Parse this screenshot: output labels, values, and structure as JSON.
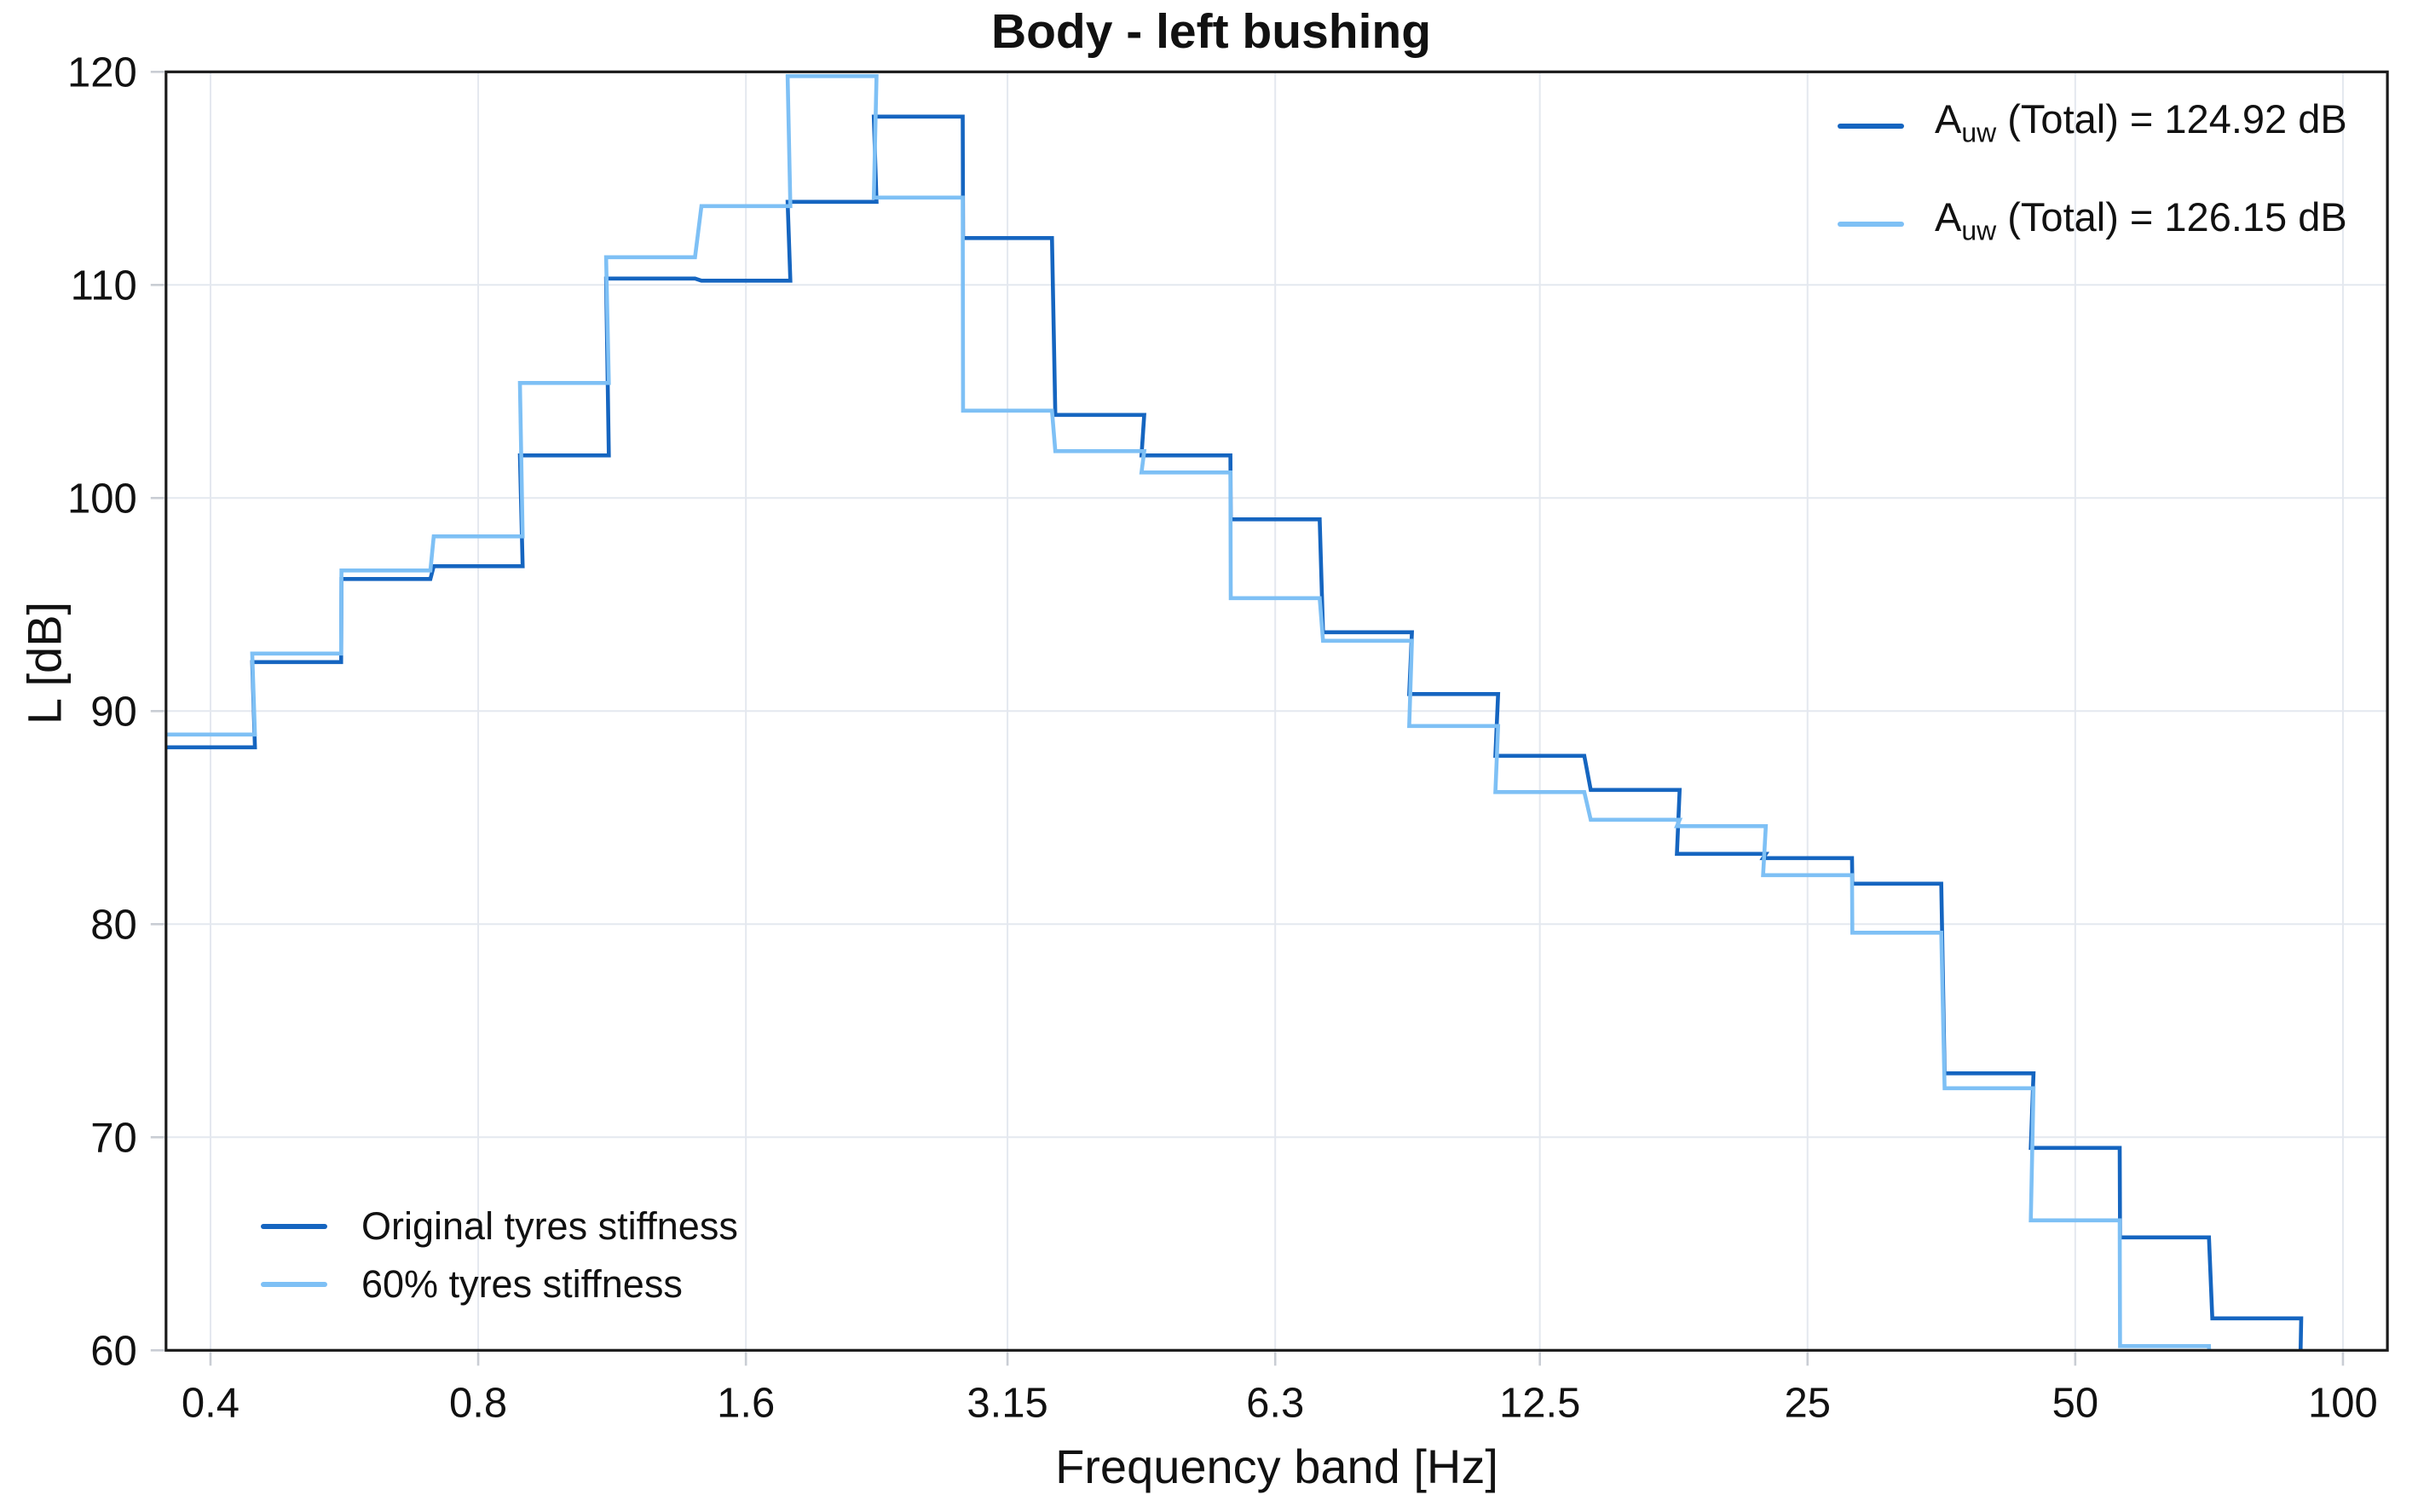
{
  "title": "Body - left bushing",
  "axes": {
    "x_label": "Frequency band [Hz]",
    "y_label": "L [dB]",
    "x_scale": "log",
    "x_min": 0.3565,
    "x_max": 112.2,
    "y_min": 60,
    "y_max": 120,
    "x_ticks": [
      0.4,
      0.8,
      1.6,
      3.15,
      6.3,
      12.5,
      25,
      50,
      100
    ],
    "x_tick_labels": [
      "0.4",
      "0.8",
      "1.6",
      "3.15",
      "6.3",
      "12.5",
      "25",
      "50",
      "100"
    ],
    "y_ticks": [
      60,
      70,
      80,
      90,
      100,
      110,
      120
    ],
    "grid": true
  },
  "colors": {
    "original": "#1565C0",
    "sixty": "#7EC0F5",
    "grid": "#E4E8EF",
    "frame": "#1a1a1a",
    "tick": "#c9cdd4"
  },
  "legend_top_right": {
    "entries": [
      {
        "prefix": "A",
        "sub": "uw",
        "rest": " (Total) = 124.92 dB",
        "color_key": "original"
      },
      {
        "prefix": "A",
        "sub": "uw",
        "rest": " (Total) = 126.15 dB",
        "color_key": "sixty"
      }
    ]
  },
  "legend_bottom_left": {
    "entries": [
      {
        "label": "Original tyres stiffness",
        "color_key": "original"
      },
      {
        "label": "60% tyres stiffness",
        "color_key": "sixty"
      }
    ]
  },
  "chart_data": {
    "type": "step",
    "x_scale": "log",
    "title": "Body - left bushing",
    "xlabel": "Frequency band [Hz]",
    "ylabel": "L [dB]",
    "ylim": [
      60,
      120
    ],
    "xlim": [
      0.3565,
      112.2
    ],
    "band_edge_ratio": 1.122,
    "legend_position": [
      "upper right",
      "lower left"
    ],
    "categories": [
      0.4,
      0.5,
      0.63,
      0.8,
      1,
      1.25,
      1.6,
      2,
      2.5,
      3.15,
      4,
      5,
      6.3,
      8,
      10,
      12.5,
      16,
      20,
      25,
      31.5,
      40,
      50,
      63,
      80,
      100
    ],
    "series": [
      {
        "name": "Original tyres stiffness",
        "color_key": "original",
        "total": "124.92 dB",
        "values": [
          88.3,
          92.3,
          96.2,
          96.8,
          102.0,
          110.3,
          110.2,
          113.9,
          117.9,
          112.2,
          103.9,
          102.0,
          99.0,
          93.7,
          90.8,
          87.9,
          86.3,
          83.3,
          83.1,
          81.9,
          73.0,
          69.5,
          65.3,
          61.5,
          null
        ]
      },
      {
        "name": "60% tyres stiffness",
        "color_key": "sixty",
        "total": "126.15 dB",
        "values": [
          88.9,
          92.7,
          96.6,
          98.2,
          105.4,
          111.3,
          113.7,
          119.8,
          114.1,
          104.1,
          102.2,
          101.2,
          95.3,
          93.3,
          89.3,
          86.2,
          84.9,
          84.6,
          82.3,
          79.6,
          72.3,
          66.1,
          60.2,
          null,
          null
        ]
      }
    ]
  }
}
